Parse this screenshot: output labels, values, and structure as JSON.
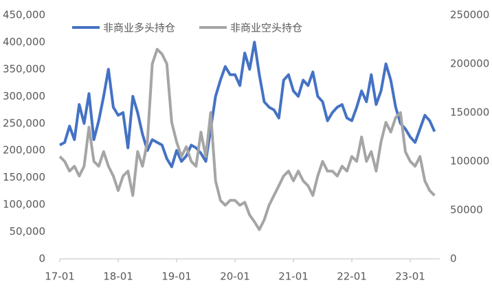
{
  "chart_data": {
    "type": "line",
    "categories": [
      "17-01",
      null,
      null,
      null,
      null,
      null,
      null,
      null,
      null,
      null,
      null,
      null,
      "18-01",
      null,
      null,
      null,
      null,
      null,
      null,
      null,
      null,
      null,
      null,
      null,
      "19-01",
      null,
      null,
      null,
      null,
      null,
      null,
      null,
      null,
      null,
      null,
      null,
      "20-01",
      null,
      null,
      null,
      null,
      null,
      null,
      null,
      null,
      null,
      null,
      null,
      "21-01",
      null,
      null,
      null,
      null,
      null,
      null,
      null,
      null,
      null,
      null,
      null,
      "22-01",
      null,
      null,
      null,
      null,
      null,
      null,
      null,
      null,
      null,
      null,
      null,
      "23-01",
      null,
      null,
      null,
      null,
      null
    ],
    "series": [
      {
        "name": "非商业多头持仓",
        "color": "#4472c4",
        "axis": "y",
        "values": [
          210000,
          215000,
          245000,
          220000,
          285000,
          250000,
          305000,
          220000,
          255000,
          300000,
          350000,
          280000,
          265000,
          270000,
          205000,
          300000,
          270000,
          230000,
          200000,
          220000,
          215000,
          210000,
          185000,
          170000,
          200000,
          180000,
          190000,
          210000,
          205000,
          195000,
          180000,
          240000,
          300000,
          330000,
          355000,
          340000,
          340000,
          320000,
          380000,
          350000,
          400000,
          340000,
          290000,
          280000,
          275000,
          260000,
          330000,
          340000,
          310000,
          300000,
          330000,
          320000,
          345000,
          300000,
          290000,
          255000,
          270000,
          280000,
          285000,
          260000,
          255000,
          280000,
          310000,
          290000,
          340000,
          285000,
          310000,
          360000,
          330000,
          280000,
          250000,
          240000,
          225000,
          215000,
          240000,
          265000,
          255000,
          235000
        ]
      },
      {
        "name": "非商业空头持仓",
        "color": "#a5a5a5",
        "axis": "y2",
        "values": [
          105000,
          100000,
          90000,
          95000,
          85000,
          95000,
          135000,
          100000,
          95000,
          110000,
          95000,
          85000,
          70000,
          85000,
          90000,
          65000,
          110000,
          95000,
          120000,
          200000,
          215000,
          210000,
          200000,
          140000,
          120000,
          105000,
          115000,
          100000,
          95000,
          130000,
          105000,
          150000,
          80000,
          60000,
          55000,
          60000,
          60000,
          55000,
          58000,
          45000,
          38000,
          30000,
          40000,
          55000,
          65000,
          75000,
          85000,
          90000,
          80000,
          90000,
          80000,
          75000,
          65000,
          85000,
          100000,
          90000,
          90000,
          85000,
          95000,
          90000,
          105000,
          100000,
          125000,
          100000,
          110000,
          90000,
          120000,
          140000,
          130000,
          145000,
          150000,
          110000,
          100000,
          95000,
          105000,
          80000,
          70000,
          65000
        ]
      }
    ],
    "ylim": [
      0,
      450000
    ],
    "yticks": [
      0,
      {
        "value": 50000,
        "label": "50,000"
      },
      {
        "value": 100000,
        "label": "100,000"
      },
      {
        "value": 150000,
        "label": "150,000"
      },
      {
        "value": 200000,
        "label": "200,000"
      },
      {
        "value": 250000,
        "label": "250,000"
      },
      {
        "value": 300000,
        "label": "300,000"
      },
      {
        "value": 350000,
        "label": "350,000"
      },
      {
        "value": 400000,
        "label": "400,000"
      },
      {
        "value": 450000,
        "label": "450,000"
      }
    ],
    "y2lim": [
      0,
      250000
    ],
    "y2ticks": [
      0,
      50000,
      100000,
      150000,
      200000,
      250000
    ],
    "grid": false,
    "legend": "top-left"
  }
}
